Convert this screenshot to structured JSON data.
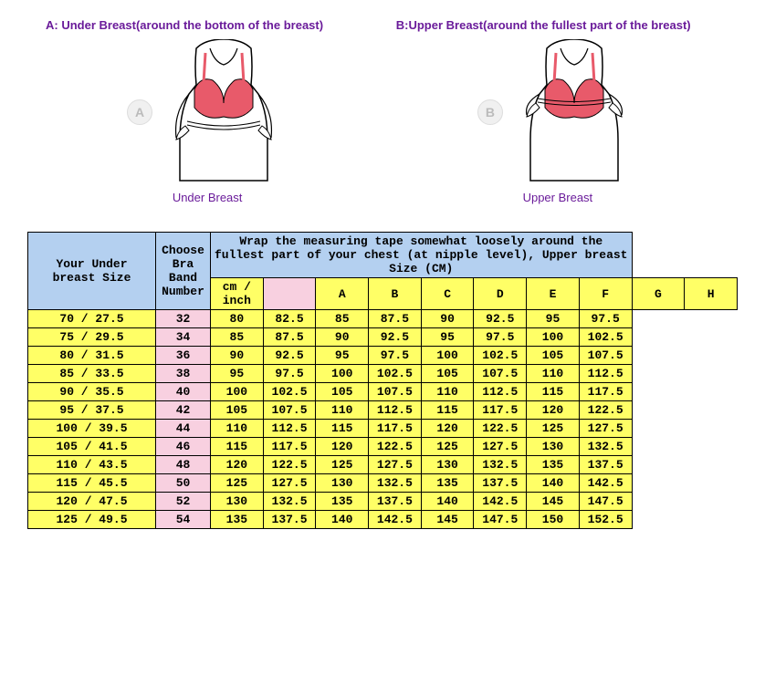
{
  "guide": {
    "a": {
      "title": "A: Under Breast(around the bottom of the breast)",
      "badge": "A",
      "caption": "Under Breast"
    },
    "b": {
      "title": "B:Upper Breast(around the fullest part of the breast)",
      "badge": "B",
      "caption": "Upper Breast"
    }
  },
  "table": {
    "header_under": "Your Under breast Size",
    "header_band": "Choose Bra Band Number",
    "header_main": "Wrap the measuring tape somewhat loosely around the fullest part of your chest (at nipple level), Upper breast Size (CM)",
    "unit_label": "cm  / inch",
    "cup_letters": [
      "A",
      "B",
      "C",
      "D",
      "E",
      "F",
      "G",
      "H"
    ],
    "rows": [
      {
        "under": "70  / 27.5",
        "band": "32",
        "cups": [
          "80",
          "82.5",
          "85",
          "87.5",
          "90",
          "92.5",
          "95",
          "97.5"
        ]
      },
      {
        "under": "75  / 29.5",
        "band": "34",
        "cups": [
          "85",
          "87.5",
          "90",
          "92.5",
          "95",
          "97.5",
          "100",
          "102.5"
        ]
      },
      {
        "under": "80  / 31.5",
        "band": "36",
        "cups": [
          "90",
          "92.5",
          "95",
          "97.5",
          "100",
          "102.5",
          "105",
          "107.5"
        ]
      },
      {
        "under": "85  / 33.5",
        "band": "38",
        "cups": [
          "95",
          "97.5",
          "100",
          "102.5",
          "105",
          "107.5",
          "110",
          "112.5"
        ]
      },
      {
        "under": "90  / 35.5",
        "band": "40",
        "cups": [
          "100",
          "102.5",
          "105",
          "107.5",
          "110",
          "112.5",
          "115",
          "117.5"
        ]
      },
      {
        "under": "95  / 37.5",
        "band": "42",
        "cups": [
          "105",
          "107.5",
          "110",
          "112.5",
          "115",
          "117.5",
          "120",
          "122.5"
        ]
      },
      {
        "under": "100 / 39.5",
        "band": "44",
        "cups": [
          "110",
          "112.5",
          "115",
          "117.5",
          "120",
          "122.5",
          "125",
          "127.5"
        ]
      },
      {
        "under": "105 / 41.5",
        "band": "46",
        "cups": [
          "115",
          "117.5",
          "120",
          "122.5",
          "125",
          "127.5",
          "130",
          "132.5"
        ]
      },
      {
        "under": "110 / 43.5",
        "band": "48",
        "cups": [
          "120",
          "122.5",
          "125",
          "127.5",
          "130",
          "132.5",
          "135",
          "137.5"
        ]
      },
      {
        "under": "115 / 45.5",
        "band": "50",
        "cups": [
          "125",
          "127.5",
          "130",
          "132.5",
          "135",
          "137.5",
          "140",
          "142.5"
        ]
      },
      {
        "under": "120 / 47.5",
        "band": "52",
        "cups": [
          "130",
          "132.5",
          "135",
          "137.5",
          "140",
          "142.5",
          "145",
          "147.5"
        ]
      },
      {
        "under": "125 / 49.5",
        "band": "54",
        "cups": [
          "135",
          "137.5",
          "140",
          "142.5",
          "145",
          "147.5",
          "150",
          "152.5"
        ]
      }
    ]
  },
  "colors": {
    "header_bg": "#b4d0f0",
    "yellow": "#ffff66",
    "pink": "#f8d0e0",
    "purple": "#6a1b9a",
    "bra": "#e85a6a",
    "skin": "#ffffff",
    "outline": "#000000"
  }
}
